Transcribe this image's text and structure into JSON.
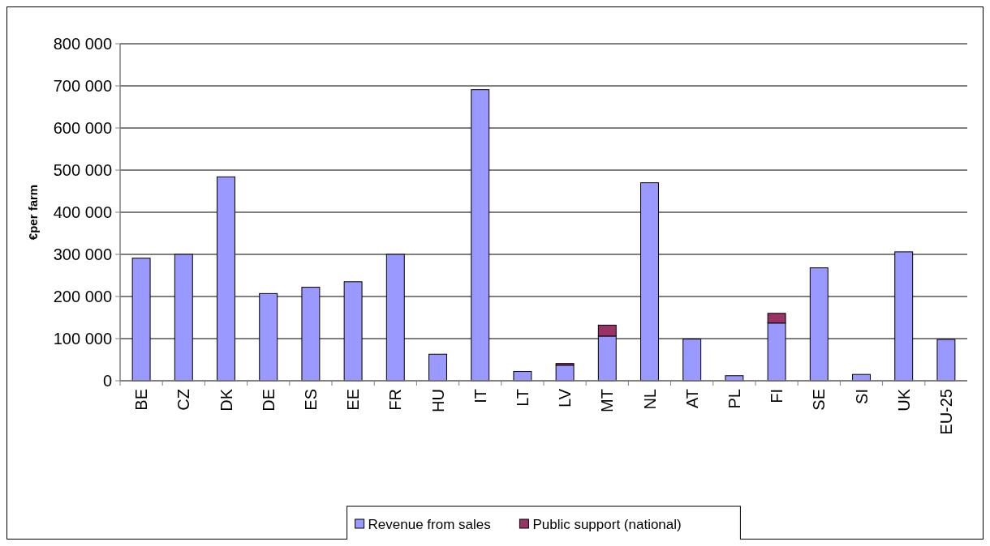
{
  "chart_data": {
    "type": "bar",
    "stacked": true,
    "ylabel": "€per farm",
    "categories": [
      "BE",
      "CZ",
      "DK",
      "DE",
      "ES",
      "EE",
      "FR",
      "HU",
      "IT",
      "LT",
      "LV",
      "MT",
      "NL",
      "AT",
      "PL",
      "FI",
      "SE",
      "SI",
      "UK",
      "EU-25"
    ],
    "series": [
      {
        "name": "Revenue from sales",
        "color": "#9999ff",
        "values": [
          291000,
          300000,
          484000,
          207000,
          222000,
          235000,
          300000,
          63000,
          691000,
          22000,
          37000,
          106000,
          470000,
          99000,
          12000,
          137000,
          268000,
          15000,
          306000,
          98000
        ]
      },
      {
        "name": "Public support (national)",
        "color": "#993366",
        "values": [
          null,
          null,
          null,
          null,
          null,
          null,
          null,
          null,
          null,
          null,
          4000,
          26000,
          null,
          null,
          null,
          23000,
          null,
          null,
          null,
          null
        ]
      }
    ],
    "ylim": [
      0,
      800000
    ],
    "yticks": [
      {
        "value": 0,
        "label": "0"
      },
      {
        "value": 100000,
        "label": "100 000"
      },
      {
        "value": 200000,
        "label": "200 000"
      },
      {
        "value": 300000,
        "label": "300 000"
      },
      {
        "value": 400000,
        "label": "400 000"
      },
      {
        "value": 500000,
        "label": "500 000"
      },
      {
        "value": 600000,
        "label": "600 000"
      },
      {
        "value": 700000,
        "label": "700 000"
      },
      {
        "value": 800000,
        "label": "800 000"
      }
    ],
    "grid": "y",
    "legend": "bottom"
  }
}
